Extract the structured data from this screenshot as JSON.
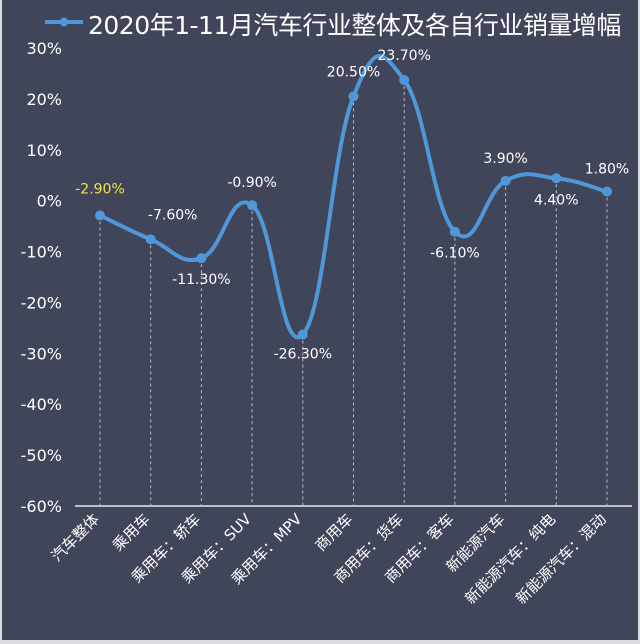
{
  "chart_data": {
    "type": "line",
    "title": "2020年1-11月汽车行业整体及各自行业销量增幅",
    "legend": [
      {
        "name": "2020年1-11月汽车行业整体及各自行业销量增幅",
        "color": "#4f97d8",
        "position": "top-left"
      }
    ],
    "xlabel": "",
    "ylabel": "",
    "ylim": [
      -60,
      30
    ],
    "yticks": [
      "30%",
      "20%",
      "10%",
      "0%",
      "-10%",
      "-20%",
      "-30%",
      "-40%",
      "-50%",
      "-60%"
    ],
    "grid": "vertical dashed drop lines",
    "smooth": true,
    "categories": [
      "汽车整体",
      "乘用车",
      "乘用车：轿车",
      "乘用车：SUV",
      "乘用车：MPV",
      "商用车",
      "商用车：货车",
      "商用车：客车",
      "新能源汽车",
      "新能源汽车：纯电",
      "新能源汽车：混动"
    ],
    "series": [
      {
        "name": "2020年1-11月汽车行业整体及各自行业销量增幅",
        "values": [
          -2.9,
          -7.6,
          -11.3,
          -0.9,
          -26.3,
          20.5,
          23.7,
          -6.1,
          3.9,
          4.4,
          1.8
        ],
        "labels": [
          "-2.90%",
          "-7.60%",
          "-11.30%",
          "-0.90%",
          "-26.30%",
          "20.50%",
          "23.70%",
          "-6.10%",
          "3.90%",
          "4.40%",
          "1.80%"
        ]
      }
    ],
    "highlight_label_color": "#f2e24a",
    "line_color": "#4f97d8",
    "background": "#40455a"
  }
}
